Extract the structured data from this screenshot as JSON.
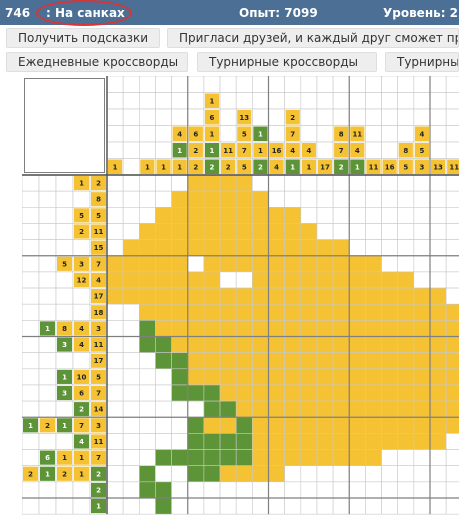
{
  "topbar": {
    "puzzle_number": "746",
    "title": ": На санках",
    "experience": "Опыт: 7099",
    "level": "Уровень: 22"
  },
  "buttons": {
    "hints": "Получить подсказки",
    "invite": "Пригласи друзей, и каждый друг сможет пр",
    "daily": "Ежедневные кроссворды",
    "tournament": "Турнирные кроссворды",
    "tournament2": "Турнирный"
  },
  "colors": {
    "topbar": "#4b6f95",
    "yellow": "#f5c234",
    "green": "#5e9438",
    "gridline": "#c8c8c8",
    "thickline": "#7f7f7f",
    "highlight": "#d93535"
  },
  "column_clues": [
    [
      {
        "v": 1,
        "c": "y"
      }
    ],
    [],
    [
      {
        "v": 1,
        "c": "y"
      }
    ],
    [
      {
        "v": 1,
        "c": "y"
      }
    ],
    [
      {
        "v": 4,
        "c": "y"
      },
      {
        "v": 1,
        "c": "g"
      },
      {
        "v": 1,
        "c": "y"
      }
    ],
    [
      {
        "v": 6,
        "c": "y"
      },
      {
        "v": 2,
        "c": "y"
      },
      {
        "v": 2,
        "c": "y"
      }
    ],
    [
      {
        "v": 1,
        "c": "y"
      },
      {
        "v": 6,
        "c": "y"
      },
      {
        "v": 1,
        "c": "y"
      },
      {
        "v": 1,
        "c": "g"
      },
      {
        "v": 2,
        "c": "g"
      }
    ],
    [
      {
        "v": 11,
        "c": "y"
      },
      {
        "v": 2,
        "c": "y"
      }
    ],
    [
      {
        "v": 13,
        "c": "y"
      },
      {
        "v": 5,
        "c": "y"
      },
      {
        "v": 7,
        "c": "y"
      },
      {
        "v": 5,
        "c": "y"
      }
    ],
    [
      {
        "v": 1,
        "c": "g"
      },
      {
        "v": 1,
        "c": "y"
      },
      {
        "v": 2,
        "c": "g"
      }
    ],
    [
      {
        "v": 16,
        "c": "y"
      },
      {
        "v": 4,
        "c": "y"
      }
    ],
    [
      {
        "v": 2,
        "c": "y"
      },
      {
        "v": 7,
        "c": "y"
      },
      {
        "v": 4,
        "c": "y"
      },
      {
        "v": 1,
        "c": "g"
      }
    ],
    [
      {
        "v": 4,
        "c": "y"
      },
      {
        "v": 1,
        "c": "y"
      }
    ],
    [
      {
        "v": 17,
        "c": "y"
      }
    ],
    [
      {
        "v": 8,
        "c": "y"
      },
      {
        "v": 7,
        "c": "y"
      },
      {
        "v": 2,
        "c": "g"
      }
    ],
    [
      {
        "v": 11,
        "c": "y"
      },
      {
        "v": 4,
        "c": "y"
      },
      {
        "v": 1,
        "c": "g"
      }
    ],
    [
      {
        "v": 11,
        "c": "y"
      }
    ],
    [
      {
        "v": 16,
        "c": "y"
      }
    ],
    [
      {
        "v": 8,
        "c": "y"
      },
      {
        "v": 5,
        "c": "y"
      }
    ],
    [
      {
        "v": 4,
        "c": "y"
      },
      {
        "v": 5,
        "c": "y"
      },
      {
        "v": 3,
        "c": "y"
      }
    ],
    [
      {
        "v": 13,
        "c": "y"
      }
    ],
    [
      {
        "v": 11,
        "c": "y"
      }
    ],
    [
      {
        "v": 8,
        "c": "y"
      }
    ],
    [
      {
        "v": 1,
        "c": "y"
      }
    ],
    [
      {
        "v": 1,
        "c": "y"
      }
    ]
  ],
  "row_clues": [
    [
      {
        "v": 1,
        "c": "y"
      },
      {
        "v": 2,
        "c": "y"
      }
    ],
    [
      {
        "v": 8,
        "c": "y"
      }
    ],
    [
      {
        "v": 5,
        "c": "y"
      },
      {
        "v": 5,
        "c": "y"
      }
    ],
    [
      {
        "v": 2,
        "c": "y"
      },
      {
        "v": 11,
        "c": "y"
      }
    ],
    [
      {
        "v": 15,
        "c": "y"
      }
    ],
    [
      {
        "v": 5,
        "c": "y"
      },
      {
        "v": 3,
        "c": "y"
      },
      {
        "v": 7,
        "c": "y"
      }
    ],
    [
      {
        "v": 12,
        "c": "y"
      },
      {
        "v": 4,
        "c": "y"
      }
    ],
    [
      {
        "v": 17,
        "c": "y"
      }
    ],
    [
      {
        "v": 18,
        "c": "y"
      }
    ],
    [
      {
        "v": 1,
        "c": "g"
      },
      {
        "v": 8,
        "c": "y"
      },
      {
        "v": 4,
        "c": "y"
      },
      {
        "v": 3,
        "c": "y"
      }
    ],
    [
      {
        "v": 3,
        "c": "g"
      },
      {
        "v": 4,
        "c": "y"
      },
      {
        "v": 11,
        "c": "y"
      }
    ],
    [
      {
        "v": 17,
        "c": "y"
      }
    ],
    [
      {
        "v": 1,
        "c": "g"
      },
      {
        "v": 10,
        "c": "y"
      },
      {
        "v": 5,
        "c": "y"
      }
    ],
    [
      {
        "v": 3,
        "c": "g"
      },
      {
        "v": 6,
        "c": "y"
      },
      {
        "v": 7,
        "c": "y"
      }
    ],
    [
      {
        "v": 2,
        "c": "g"
      },
      {
        "v": 14,
        "c": "y"
      }
    ],
    [
      {
        "v": 1,
        "c": "g"
      },
      {
        "v": 2,
        "c": "y"
      },
      {
        "v": 1,
        "c": "g"
      },
      {
        "v": 7,
        "c": "y"
      },
      {
        "v": 3,
        "c": "y"
      }
    ],
    [
      {
        "v": 4,
        "c": "g"
      },
      {
        "v": 11,
        "c": "y"
      }
    ],
    [
      {
        "v": 6,
        "c": "g"
      },
      {
        "v": 1,
        "c": "y"
      },
      {
        "v": 1,
        "c": "y"
      },
      {
        "v": 7,
        "c": "y"
      }
    ],
    [
      {
        "v": 2,
        "c": "y"
      },
      {
        "v": 1,
        "c": "g"
      },
      {
        "v": 2,
        "c": "y"
      },
      {
        "v": 1,
        "c": "y"
      },
      {
        "v": 2,
        "c": "g"
      }
    ],
    [
      {
        "v": 2,
        "c": "g"
      }
    ],
    [
      {
        "v": 1,
        "c": "g"
      }
    ]
  ],
  "grid": [
    ".....YYYY................",
    "....YYYYYY...............",
    "...YYYYYYYYY.............",
    "..YYYYYYYYYYY............",
    ".YYYYYYYYYYYYYY..........",
    "YYYYY.YYYYYYYYYYY........",
    "YYYYYYY..YYYYYYYYYY......",
    "YYYYYYYYYYYYYYYYYYYYY....",
    "..YYYYYYYYYYYYYYYYYYYYY..",
    "..GYYYYYYYYYYYYYYYYYYYY..",
    "..GGYYYYYYYYYYYYYYYYYYY..",
    "...GGYYYYYYYYYYYYYYYYYY..",
    "....GYYYYYYYYYYYYYYYYYY..",
    "....GGGYYYYYYYYYYYYYYYY..",
    "......GGYYYYYYYYYYYYYYY..",
    ".....GYYGYYYYYYYYYYYYYY..",
    ".....GGGGYYYYYYYYYYYY....",
    "...GGGGGGYYYYYYYY........",
    "..G..GGYYYY..............",
    "..GG.....................",
    "...G....................."
  ]
}
